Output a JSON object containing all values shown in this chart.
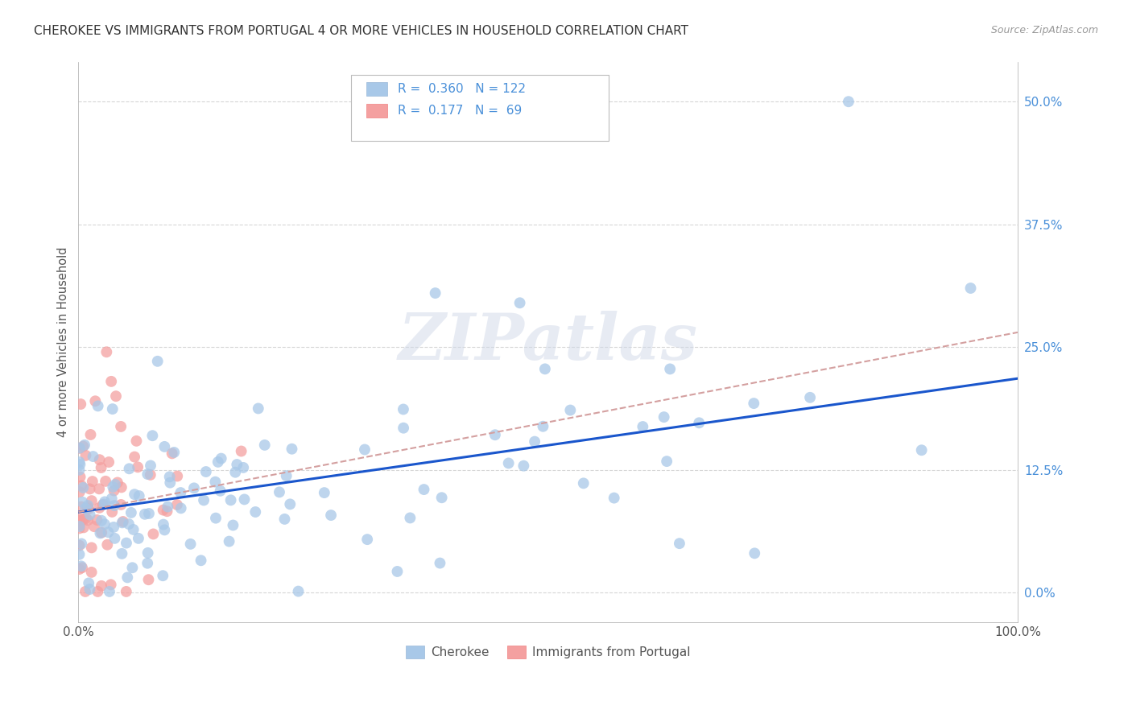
{
  "title": "CHEROKEE VS IMMIGRANTS FROM PORTUGAL 4 OR MORE VEHICLES IN HOUSEHOLD CORRELATION CHART",
  "source": "Source: ZipAtlas.com",
  "ylabel": "4 or more Vehicles in Household",
  "xlim": [
    0,
    1.0
  ],
  "ylim": [
    -0.03,
    0.54
  ],
  "yticks": [
    0.0,
    0.125,
    0.25,
    0.375,
    0.5
  ],
  "ytick_labels": [
    "0.0%",
    "12.5%",
    "25.0%",
    "37.5%",
    "50.0%"
  ],
  "xticks": [
    0.0,
    0.25,
    0.5,
    0.75,
    1.0
  ],
  "xtick_labels": [
    "0.0%",
    "",
    "",
    "",
    "100.0%"
  ],
  "blue_color": "#a8c8e8",
  "pink_color": "#f4a0a0",
  "line_blue": "#1a56cc",
  "line_pink_color": "#d4a0a0",
  "watermark": "ZIPatlas",
  "background_color": "#ffffff",
  "grid_color": "#cccccc",
  "blue_line_x0": 0.0,
  "blue_line_y0": 0.082,
  "blue_line_x1": 1.0,
  "blue_line_y1": 0.218,
  "pink_line_x0": 0.0,
  "pink_line_y0": 0.082,
  "pink_line_x1": 1.0,
  "pink_line_y1": 0.265
}
